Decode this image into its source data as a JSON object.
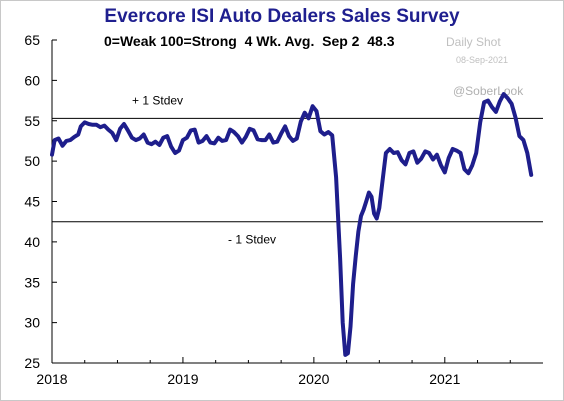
{
  "title": "Evercore ISI Auto Dealers Sales Survey",
  "subtitle": "0=Weak 100=Strong  4 Wk. Avg.  Sep 2  48.3",
  "watermark": {
    "line1": "Daily Shot",
    "line2": "08-Sep-2021",
    "line3": "@SoberLook"
  },
  "colors": {
    "line": "#1e1e8c",
    "title": "#1f1f8f",
    "reference": "#000000"
  },
  "chart_data": {
    "type": "line",
    "title": "Evercore ISI Auto Dealers Sales Survey",
    "subtitle": "0=Weak 100=Strong  4 Wk. Avg.  Sep 2  48.3",
    "ylim": [
      25,
      65
    ],
    "yticks": [
      "25",
      "30",
      "35",
      "40",
      "45",
      "50",
      "55",
      "60",
      "65"
    ],
    "xlim": [
      2018.0,
      2021.75
    ],
    "xticks": [
      "2018",
      "2019",
      "2020",
      "2021"
    ],
    "grid": false,
    "reference_lines": [
      {
        "label": "+ 1 Stdev",
        "y": 55.3
      },
      {
        "label": "- 1 Stdev",
        "y": 42.5
      }
    ],
    "series": [
      {
        "x": [
          2018.0,
          2018.02,
          2018.05,
          2018.08,
          2018.11,
          2018.14,
          2018.17,
          2018.2,
          2018.22,
          2018.25,
          2018.28,
          2018.31,
          2018.34,
          2018.37,
          2018.4,
          2018.43,
          2018.46,
          2018.49,
          2018.52,
          2018.55,
          2018.58,
          2018.61,
          2018.64,
          2018.67,
          2018.7,
          2018.73,
          2018.76,
          2018.79,
          2018.82,
          2018.85,
          2018.88,
          2018.91,
          2018.94,
          2018.97,
          2019.0,
          2019.03,
          2019.06,
          2019.09,
          2019.12,
          2019.15,
          2019.18,
          2019.21,
          2019.24,
          2019.27,
          2019.3,
          2019.33,
          2019.36,
          2019.39,
          2019.42,
          2019.45,
          2019.48,
          2019.51,
          2019.54,
          2019.57,
          2019.6,
          2019.63,
          2019.66,
          2019.69,
          2019.72,
          2019.75,
          2019.78,
          2019.81,
          2019.84,
          2019.87,
          2019.9,
          2019.93,
          2019.96,
          2019.99,
          2020.02,
          2020.05,
          2020.08,
          2020.11,
          2020.14,
          2020.17,
          2020.2,
          2020.22,
          2020.24,
          2020.26,
          2020.28,
          2020.3,
          2020.32,
          2020.34,
          2020.36,
          2020.38,
          2020.4,
          2020.42,
          2020.44,
          2020.46,
          2020.48,
          2020.5,
          2020.52,
          2020.55,
          2020.58,
          2020.61,
          2020.64,
          2020.67,
          2020.7,
          2020.73,
          2020.76,
          2020.79,
          2020.82,
          2020.85,
          2020.88,
          2020.91,
          2020.94,
          2020.97,
          2021.0,
          2021.03,
          2021.06,
          2021.09,
          2021.12,
          2021.15,
          2021.18,
          2021.21,
          2021.24,
          2021.27,
          2021.3,
          2021.33,
          2021.36,
          2021.39,
          2021.42,
          2021.45,
          2021.48,
          2021.51,
          2021.54,
          2021.57,
          2021.6,
          2021.63,
          2021.66
        ],
        "y": [
          50.8,
          52.6,
          52.8,
          51.9,
          52.5,
          52.6,
          53.0,
          53.3,
          54.3,
          54.8,
          54.6,
          54.5,
          54.5,
          54.2,
          54.4,
          53.9,
          53.5,
          52.6,
          54.0,
          54.6,
          53.8,
          52.9,
          52.6,
          52.8,
          53.3,
          52.3,
          52.1,
          52.4,
          52.0,
          52.9,
          53.1,
          51.8,
          51.0,
          51.3,
          52.6,
          52.9,
          53.8,
          53.9,
          52.3,
          52.5,
          53.1,
          52.3,
          52.2,
          52.9,
          52.5,
          52.6,
          53.9,
          53.6,
          53.1,
          52.3,
          53.0,
          54.0,
          53.8,
          52.7,
          52.6,
          52.6,
          53.3,
          52.3,
          52.4,
          53.4,
          54.3,
          53.1,
          52.5,
          52.8,
          54.9,
          56.0,
          55.3,
          56.8,
          56.2,
          53.7,
          53.3,
          53.6,
          53.2,
          48.0,
          38.0,
          30.0,
          26.0,
          26.2,
          29.5,
          34.8,
          38.3,
          41.3,
          43.2,
          44.0,
          45.0,
          46.1,
          45.6,
          43.5,
          42.9,
          44.2,
          47.0,
          51.0,
          51.5,
          51.0,
          51.1,
          50.1,
          49.6,
          51.0,
          51.2,
          49.8,
          50.3,
          51.2,
          51.0,
          50.2,
          50.8,
          49.5,
          48.6,
          50.4,
          51.5,
          51.3,
          51.0,
          49.0,
          48.5,
          49.5,
          51.0,
          54.8,
          57.3,
          57.5,
          56.7,
          56.1,
          57.4,
          58.3,
          57.8,
          57.1,
          55.4,
          53.1,
          52.6,
          51.0,
          48.3
        ]
      }
    ]
  }
}
